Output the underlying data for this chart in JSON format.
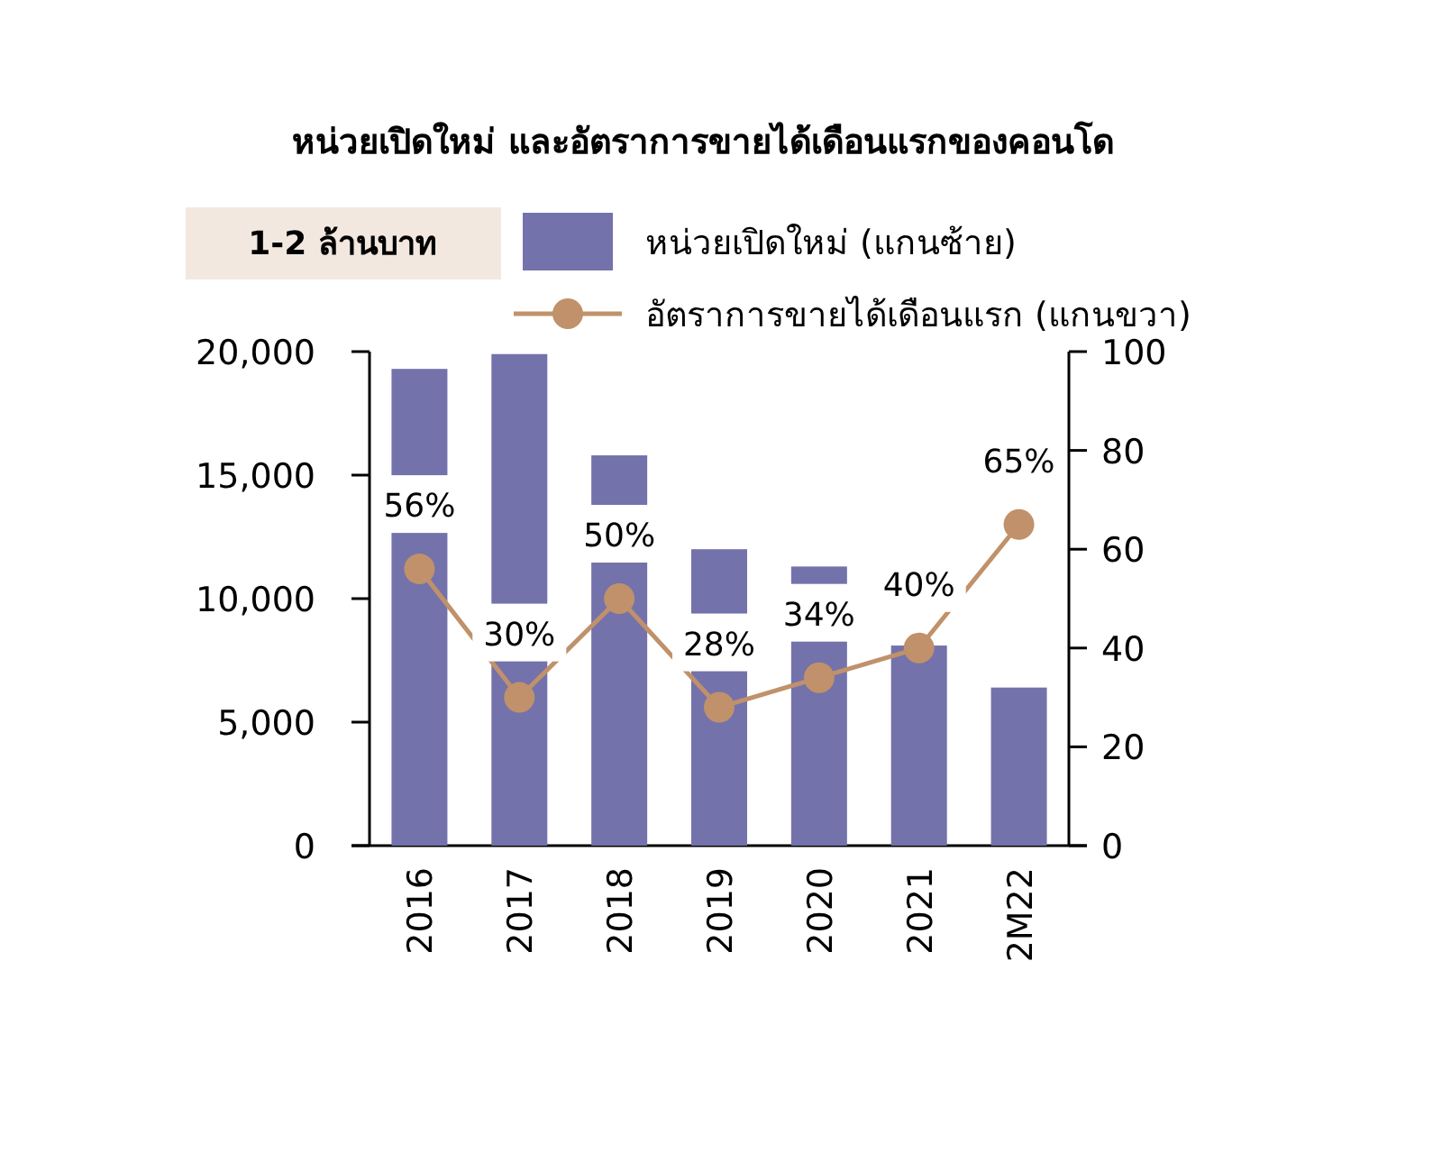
{
  "chart_data": {
    "type": "bar",
    "title": "หน่วยเปิดใหม่ และอัตราการขายได้เดือนแรกของคอนโด",
    "annotations": [
      "1-2 ล้านบาท"
    ],
    "categories": [
      "2016",
      "2017",
      "2018",
      "2019",
      "2020",
      "2021",
      "2M22"
    ],
    "series": [
      {
        "name": "หน่วยเปิดใหม่ (แกนซ้าย)",
        "color": "#7472ab",
        "values": [
          19300,
          19900,
          15800,
          12000,
          11300,
          8100,
          6400
        ]
      },
      {
        "name": "อัตราการขายได้เดือนแรก (แกนขวา)",
        "type": "line",
        "axis": "y2",
        "color": "#c0916a",
        "marker": "circle",
        "values": [
          56,
          30,
          50,
          28,
          34,
          40,
          65
        ],
        "value_labels": [
          "56%",
          "30%",
          "50%",
          "28%",
          "34%",
          "40%",
          "65%"
        ]
      }
    ],
    "ylim": [
      0,
      20000
    ],
    "yticks": [
      {
        "value": 0,
        "label": "0"
      },
      {
        "value": 5000,
        "label": "5,000"
      },
      {
        "value": 10000,
        "label": "10,000"
      },
      {
        "value": 15000,
        "label": "15,000"
      },
      {
        "value": 20000,
        "label": "20,000"
      }
    ],
    "y2lim": [
      0,
      100
    ],
    "y2ticks": [
      0,
      20,
      40,
      60,
      80,
      100
    ],
    "legend": "top",
    "grid": false
  }
}
